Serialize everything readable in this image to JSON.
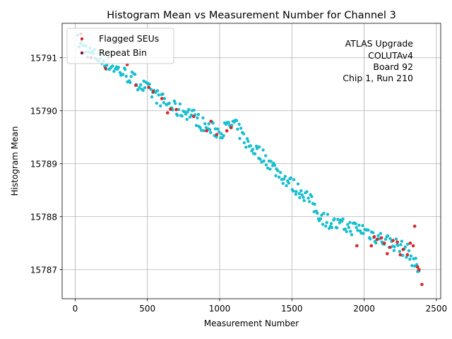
{
  "chart_data": {
    "type": "scatter",
    "title": "Histogram Mean vs Measurement Number for Channel 3",
    "xlabel": "Measurement Number",
    "ylabel": "Histogram Mean",
    "xlim": [
      -90,
      2530
    ],
    "ylim": [
      15786.45,
      15791.65
    ],
    "xticks": [
      0,
      500,
      1000,
      1500,
      2000,
      2500
    ],
    "yticks": [
      15787,
      15788,
      15789,
      15790,
      15791
    ],
    "grid": true,
    "legend_position": "top-left",
    "annotation_lines": [
      "ATLAS Upgrade",
      "COLUTAv4",
      "Board 92",
      "Chip 1, Run 210"
    ],
    "annotation_position": "top-right",
    "colors": {
      "normal": "#17becf",
      "flagged": "#d62728"
    },
    "series": [
      {
        "name": "Flagged SEUs",
        "color": "#d62728",
        "x": [
          40,
          110,
          210,
          360,
          420,
          510,
          540,
          600,
          640,
          660,
          700,
          820,
          910,
          940,
          980,
          1050,
          1080,
          1950,
          2050,
          2070,
          2090,
          2120,
          2140,
          2160,
          2180,
          2200,
          2230,
          2250,
          2270,
          2300,
          2320,
          2340,
          2350,
          2370,
          2380,
          2400
        ],
        "y": [
          15791.45,
          15791.0,
          15790.8,
          15790.87,
          15790.48,
          15790.44,
          15790.36,
          15790.23,
          15789.96,
          15790.03,
          15790.02,
          15789.89,
          15789.62,
          15789.8,
          15789.55,
          15789.62,
          15789.68,
          15787.45,
          15787.45,
          15787.62,
          15787.57,
          15787.6,
          15787.5,
          15787.3,
          15787.42,
          15787.55,
          15787.52,
          15787.28,
          15787.38,
          15787.28,
          15787.5,
          15787.45,
          15787.82,
          15787.05,
          15787.0,
          15786.72
        ]
      },
      {
        "name": "Repeat Bin",
        "color": "#7f0f4f",
        "x": [],
        "y": []
      }
    ]
  }
}
